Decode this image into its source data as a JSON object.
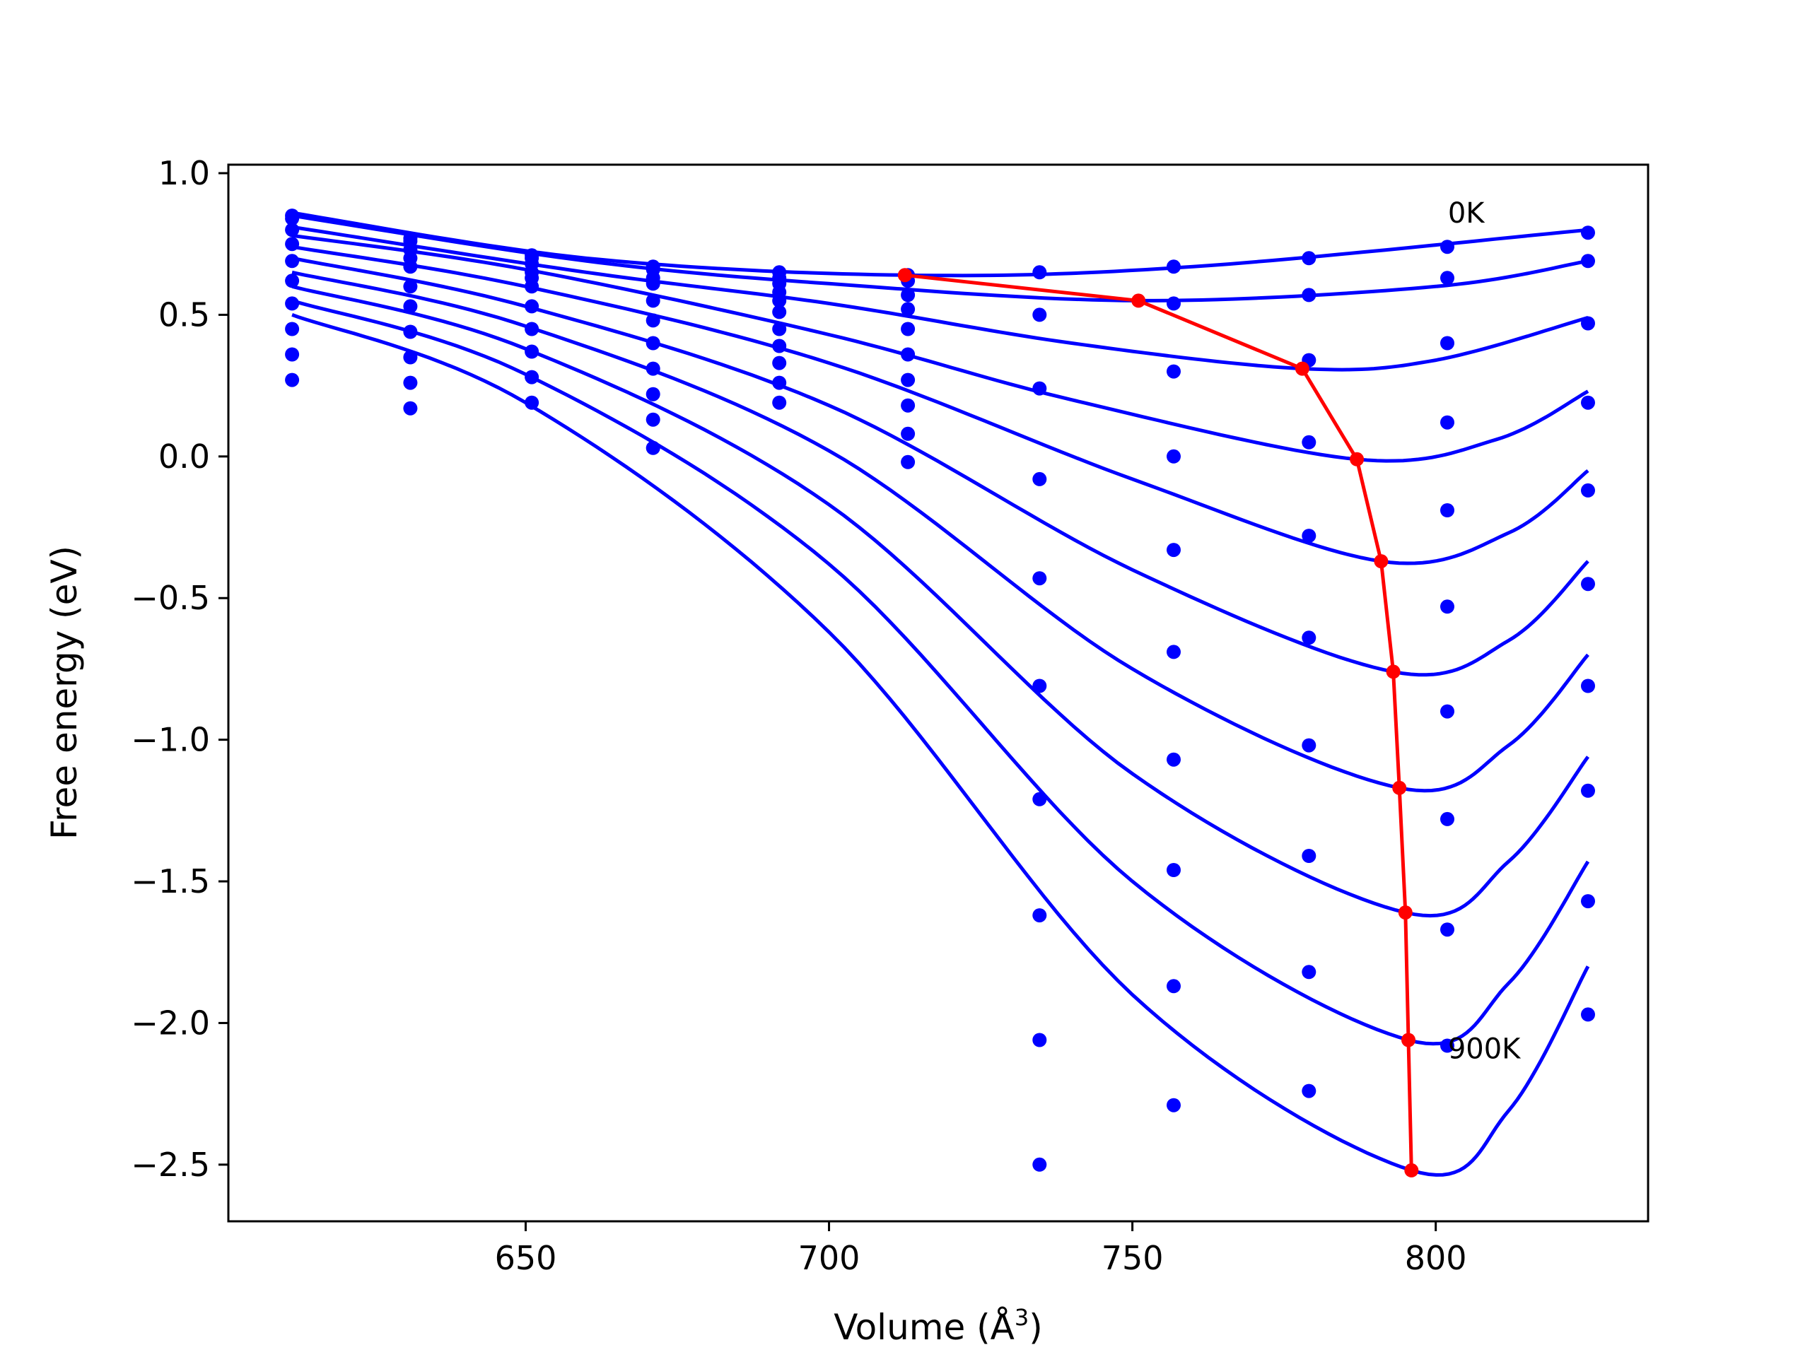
{
  "chart_data": {
    "type": "line",
    "title": "",
    "xlabel": "Volume (Å³)",
    "xlabel_parts": {
      "text": "Volume (",
      "unit": "Å",
      "exponent": "3",
      "close": ")"
    },
    "ylabel": "Free energy (eV)",
    "xlim": [
      601,
      835
    ],
    "ylim": [
      -2.7,
      1.03
    ],
    "xticks": [
      650,
      700,
      750,
      800
    ],
    "xtick_labels": [
      "650",
      "700",
      "750",
      "800"
    ],
    "yticks": [
      1.0,
      0.5,
      0.0,
      -0.5,
      -1.0,
      -1.5,
      -2.0,
      -2.5
    ],
    "ytick_labels": [
      "1.0",
      "0.5",
      "0.0",
      "−0.5",
      "−1.0",
      "−1.5",
      "−2.0",
      "−2.5"
    ],
    "grid": false,
    "legend": "none",
    "colors": {
      "curves": "#0000ff",
      "points": "#0000ff",
      "minima": "#ff0000"
    },
    "annotations": [
      {
        "text": "0K",
        "x": 802,
        "y": 0.86
      },
      {
        "text": "900K",
        "x": 802,
        "y": -2.09
      }
    ],
    "volumes": [
      611.5,
      631.0,
      651.0,
      671.0,
      691.8,
      713.0,
      734.7,
      756.8,
      779.1,
      801.9,
      825.1
    ],
    "point_series": [
      {
        "name": "0K",
        "y": [
          0.85,
          0.77,
          0.71,
          0.67,
          0.65,
          0.64,
          0.65,
          0.67,
          0.7,
          0.74,
          0.79
        ]
      },
      {
        "name": "100K",
        "y": [
          0.84,
          0.76,
          0.7,
          0.66,
          0.63,
          0.62,
          0.5,
          0.54,
          0.57,
          0.63,
          0.69
        ]
      },
      {
        "name": "200K",
        "y": [
          0.8,
          0.73,
          0.68,
          0.63,
          0.61,
          0.57,
          0.24,
          0.3,
          0.34,
          0.4,
          0.47
        ]
      },
      {
        "name": "300K",
        "y": [
          0.75,
          0.7,
          0.65,
          0.61,
          0.58,
          0.52,
          -0.08,
          0.0,
          0.05,
          0.12,
          0.19
        ]
      },
      {
        "name": "400K",
        "y": [
          0.69,
          0.67,
          0.63,
          0.55,
          0.55,
          0.45,
          -0.43,
          -0.33,
          -0.28,
          -0.19,
          -0.12
        ]
      },
      {
        "name": "500K",
        "y": [
          0.62,
          0.6,
          0.6,
          0.48,
          0.51,
          0.36,
          -0.81,
          -0.69,
          -0.64,
          -0.53,
          -0.45
        ]
      },
      {
        "name": "600K",
        "y": [
          0.54,
          0.53,
          0.53,
          0.4,
          0.45,
          0.27,
          -1.21,
          -1.07,
          -1.02,
          -0.9,
          -0.81
        ]
      },
      {
        "name": "700K",
        "y": [
          0.45,
          0.44,
          0.45,
          0.31,
          0.39,
          0.18,
          -1.62,
          -1.46,
          -1.41,
          -1.28,
          -1.18
        ]
      },
      {
        "name": "800K",
        "y": [
          0.36,
          0.35,
          0.37,
          0.22,
          0.33,
          0.08,
          -2.06,
          -1.87,
          -1.82,
          -1.67,
          -1.57
        ]
      },
      {
        "name": "900K",
        "y": [
          0.27,
          0.26,
          0.28,
          0.13,
          0.26,
          -0.02,
          -2.5,
          -2.29,
          -2.24,
          -2.08,
          -1.97
        ]
      },
      {
        "name": "extra",
        "y": [
          null,
          0.17,
          0.19,
          0.03,
          0.19,
          null,
          null,
          null,
          null,
          null,
          null
        ]
      }
    ],
    "fitted_curves": [
      {
        "name": "0K",
        "x_min_vol": 712.5,
        "minimum": 0.64,
        "x": [
          611.5,
          660,
          712.5,
          760,
          825.1
        ],
        "y": [
          0.86,
          0.7,
          0.64,
          0.67,
          0.8
        ]
      },
      {
        "name": "100K",
        "x_min_vol": 751.0,
        "minimum": 0.55,
        "x": [
          611.5,
          660,
          700,
          751,
          800,
          825.1
        ],
        "y": [
          0.85,
          0.69,
          0.61,
          0.55,
          0.6,
          0.69
        ]
      },
      {
        "name": "200K",
        "x_min_vol": 778.0,
        "minimum": 0.31,
        "x": [
          611.5,
          660,
          700,
          740,
          778,
          800,
          825.1
        ],
        "y": [
          0.81,
          0.65,
          0.54,
          0.4,
          0.31,
          0.34,
          0.49
        ]
      },
      {
        "name": "300K",
        "x_min_vol": 787.0,
        "minimum": -0.01,
        "x": [
          611.5,
          650,
          700,
          740,
          787,
          810,
          825.1
        ],
        "y": [
          0.78,
          0.66,
          0.43,
          0.2,
          -0.01,
          0.06,
          0.23
        ]
      },
      {
        "name": "400K",
        "x_min_vol": 791.0,
        "minimum": -0.37,
        "x": [
          611.5,
          650,
          700,
          750,
          791,
          812,
          825.1
        ],
        "y": [
          0.74,
          0.6,
          0.33,
          -0.08,
          -0.37,
          -0.27,
          -0.05
        ]
      },
      {
        "name": "500K",
        "x_min_vol": 793.0,
        "minimum": -0.76,
        "x": [
          611.5,
          650,
          700,
          750,
          793,
          812,
          825.1
        ],
        "y": [
          0.7,
          0.53,
          0.18,
          -0.4,
          -0.76,
          -0.65,
          -0.37
        ]
      },
      {
        "name": "600K",
        "x_min_vol": 794.0,
        "minimum": -1.17,
        "x": [
          611.5,
          650,
          700,
          750,
          794,
          812,
          825.1
        ],
        "y": [
          0.65,
          0.46,
          0.02,
          -0.75,
          -1.17,
          -1.02,
          -0.7
        ]
      },
      {
        "name": "700K",
        "x_min_vol": 795.0,
        "minimum": -1.61,
        "x": [
          611.5,
          650,
          700,
          750,
          795,
          812,
          825.1
        ],
        "y": [
          0.6,
          0.38,
          -0.17,
          -1.12,
          -1.61,
          -1.43,
          -1.06
        ]
      },
      {
        "name": "800K",
        "x_min_vol": 795.5,
        "minimum": -2.06,
        "x": [
          611.5,
          650,
          700,
          750,
          795.5,
          812,
          825.1
        ],
        "y": [
          0.55,
          0.29,
          -0.38,
          -1.5,
          -2.06,
          -1.86,
          -1.43
        ]
      },
      {
        "name": "900K",
        "x_min_vol": 796.0,
        "minimum": -2.52,
        "x": [
          611.5,
          650,
          700,
          750,
          796,
          812,
          825.1
        ],
        "y": [
          0.5,
          0.19,
          -0.62,
          -1.9,
          -2.52,
          -2.31,
          -1.8
        ]
      }
    ],
    "minima_line": {
      "x": [
        712.5,
        751.0,
        778.0,
        787.0,
        791.0,
        793.0,
        794.0,
        795.0,
        795.5,
        796.0
      ],
      "y": [
        0.64,
        0.55,
        0.31,
        -0.01,
        -0.37,
        -0.76,
        -1.17,
        -1.61,
        -2.06,
        -2.52
      ]
    }
  }
}
